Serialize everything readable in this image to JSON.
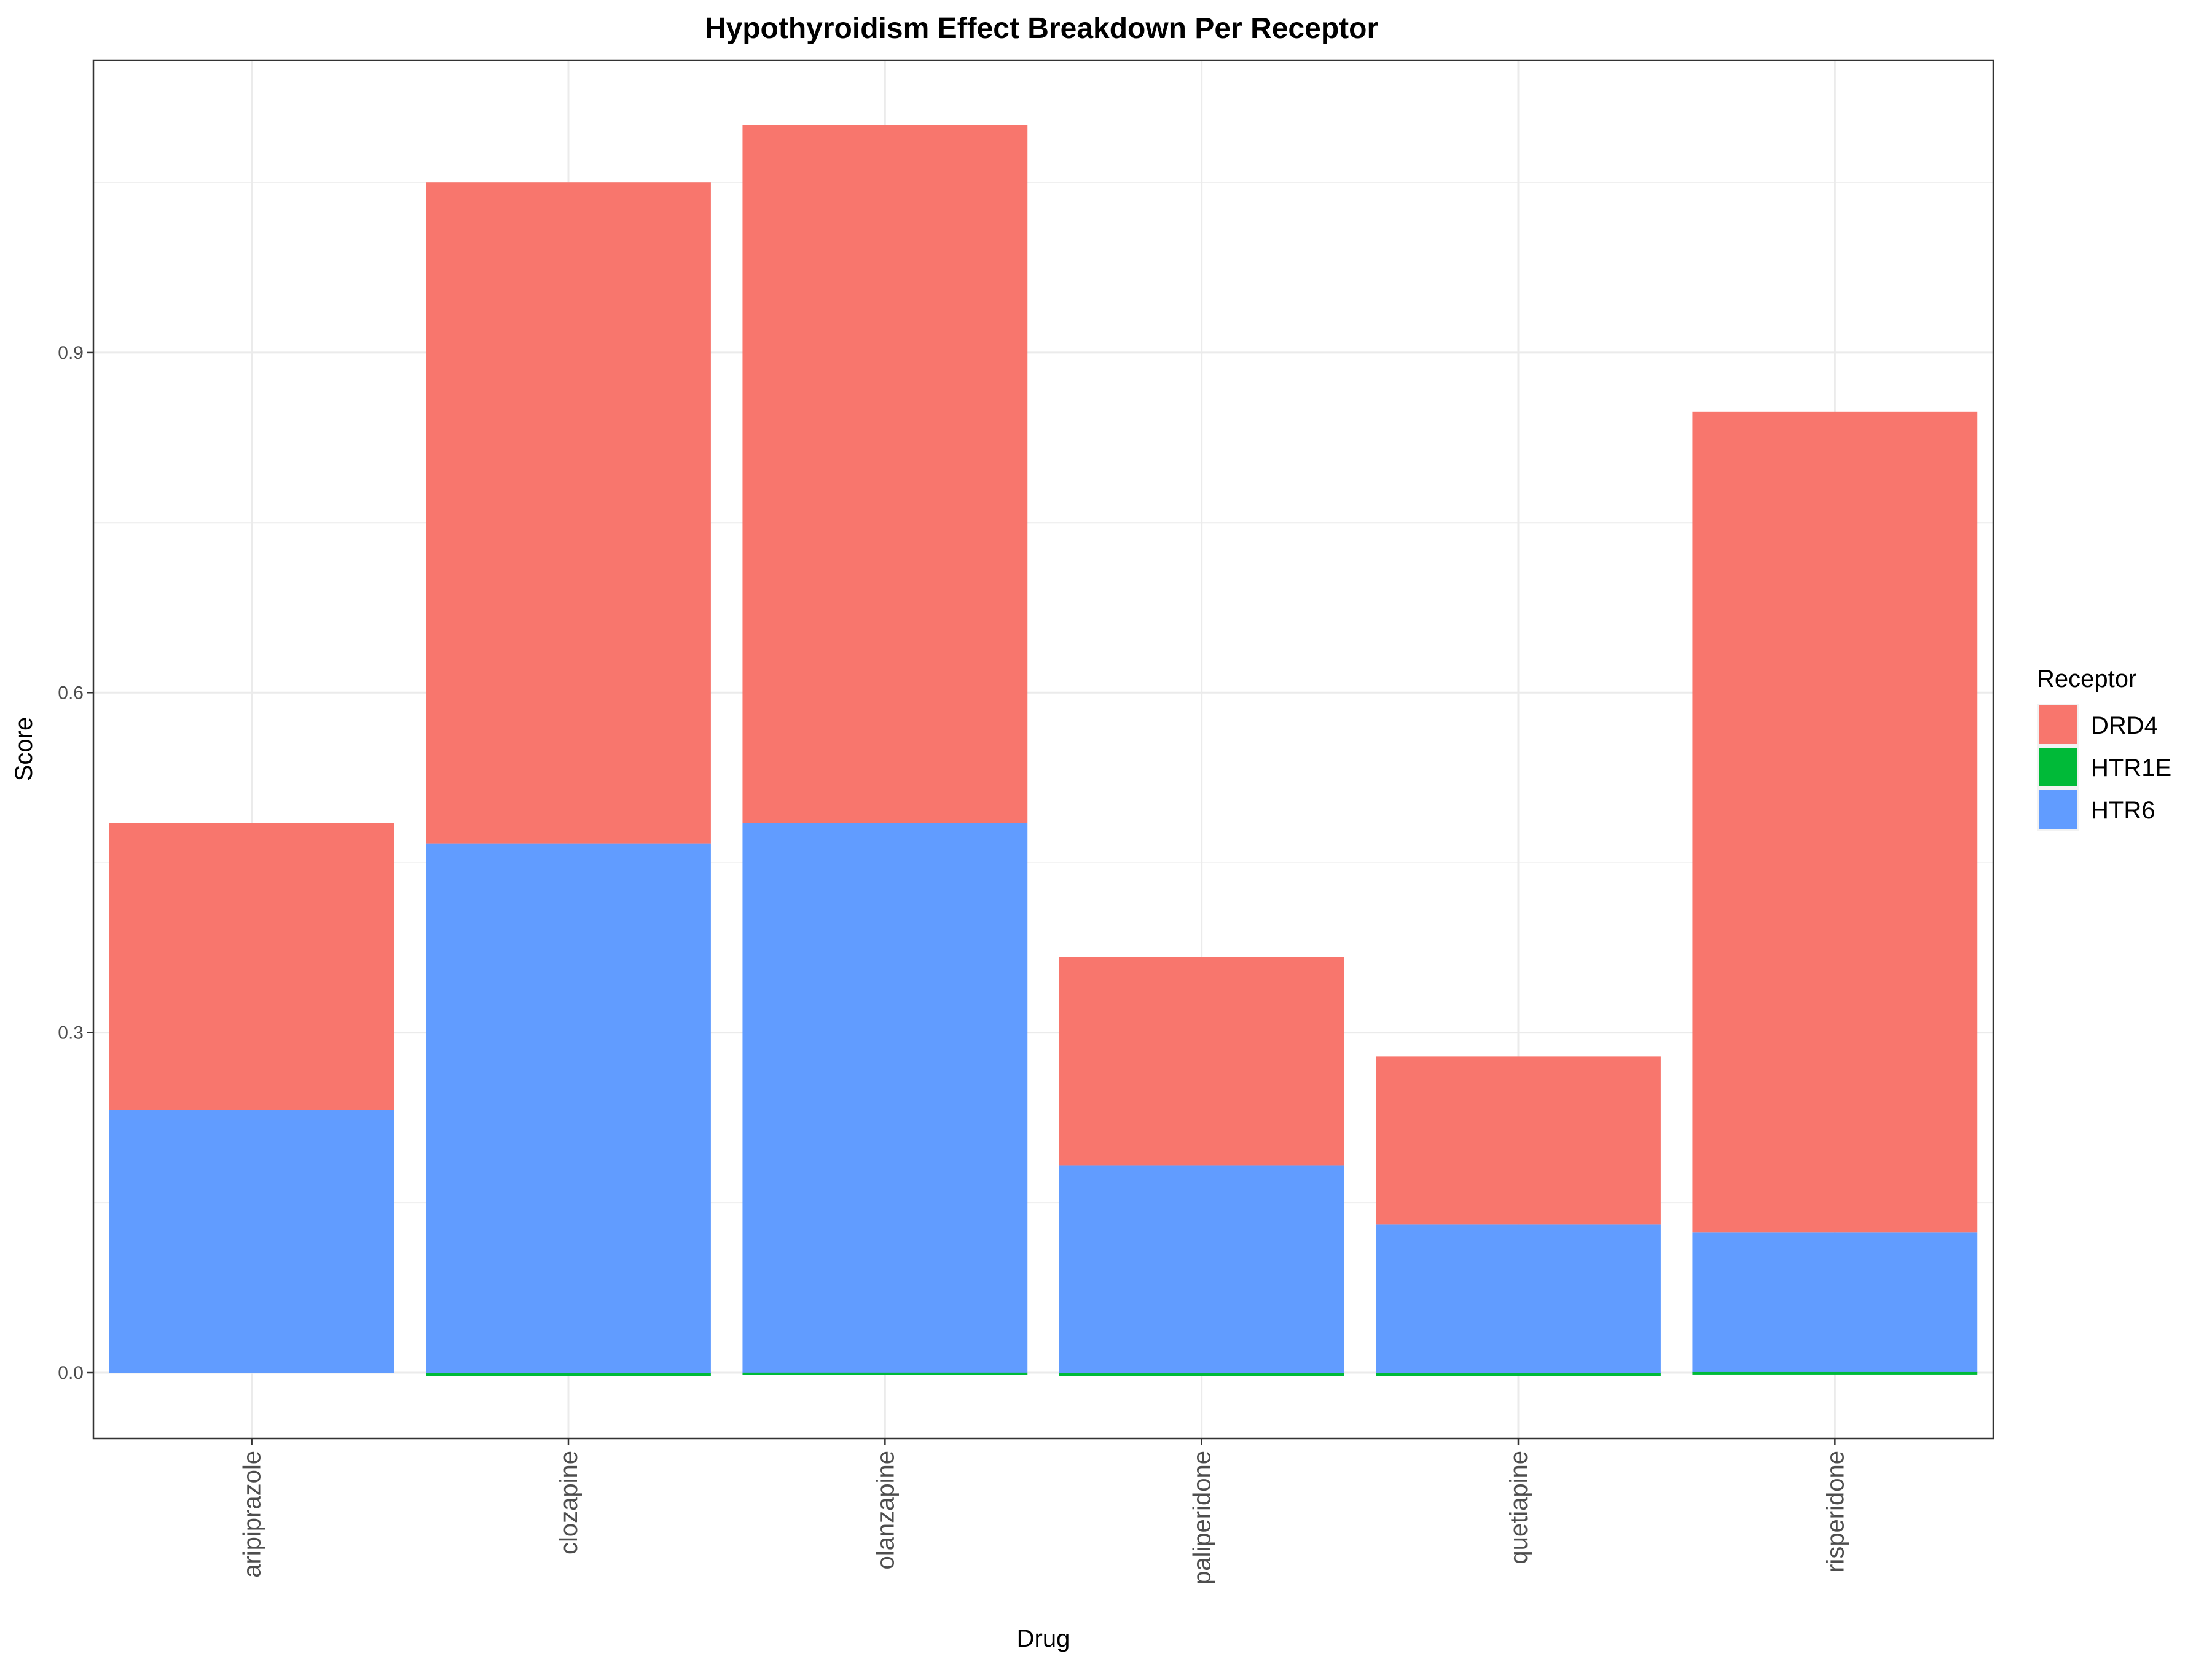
{
  "chart_data": {
    "type": "bar",
    "stacked": true,
    "title": "Hypothyroidism Effect Breakdown Per Receptor",
    "xlabel": "Drug",
    "ylabel": "Score",
    "categories": [
      "aripiprazole",
      "clozapine",
      "olanzapine",
      "paliperidone",
      "quetiapine",
      "risperidone"
    ],
    "series": [
      {
        "name": "DRD4",
        "color": "#F8766D",
        "values": [
          0.253,
          0.583,
          0.616,
          0.184,
          0.148,
          0.724
        ]
      },
      {
        "name": "HTR1E",
        "color": "#00BA38",
        "values": [
          0.0,
          -0.003,
          -0.002,
          -0.003,
          -0.003,
          -0.001
        ]
      },
      {
        "name": "HTR6",
        "color": "#619CFF",
        "values": [
          0.232,
          0.467,
          0.485,
          0.183,
          0.131,
          0.124
        ]
      }
    ],
    "ylim": [
      -0.058,
      1.158
    ],
    "yticks": [
      0.0,
      0.3,
      0.6,
      0.9
    ],
    "ytick_labels": [
      "0.0",
      "0.3",
      "0.6",
      "0.9"
    ],
    "grid": true,
    "legend": {
      "title": "Receptor",
      "position": "right",
      "items": [
        "DRD4",
        "HTR1E",
        "HTR6"
      ]
    }
  }
}
